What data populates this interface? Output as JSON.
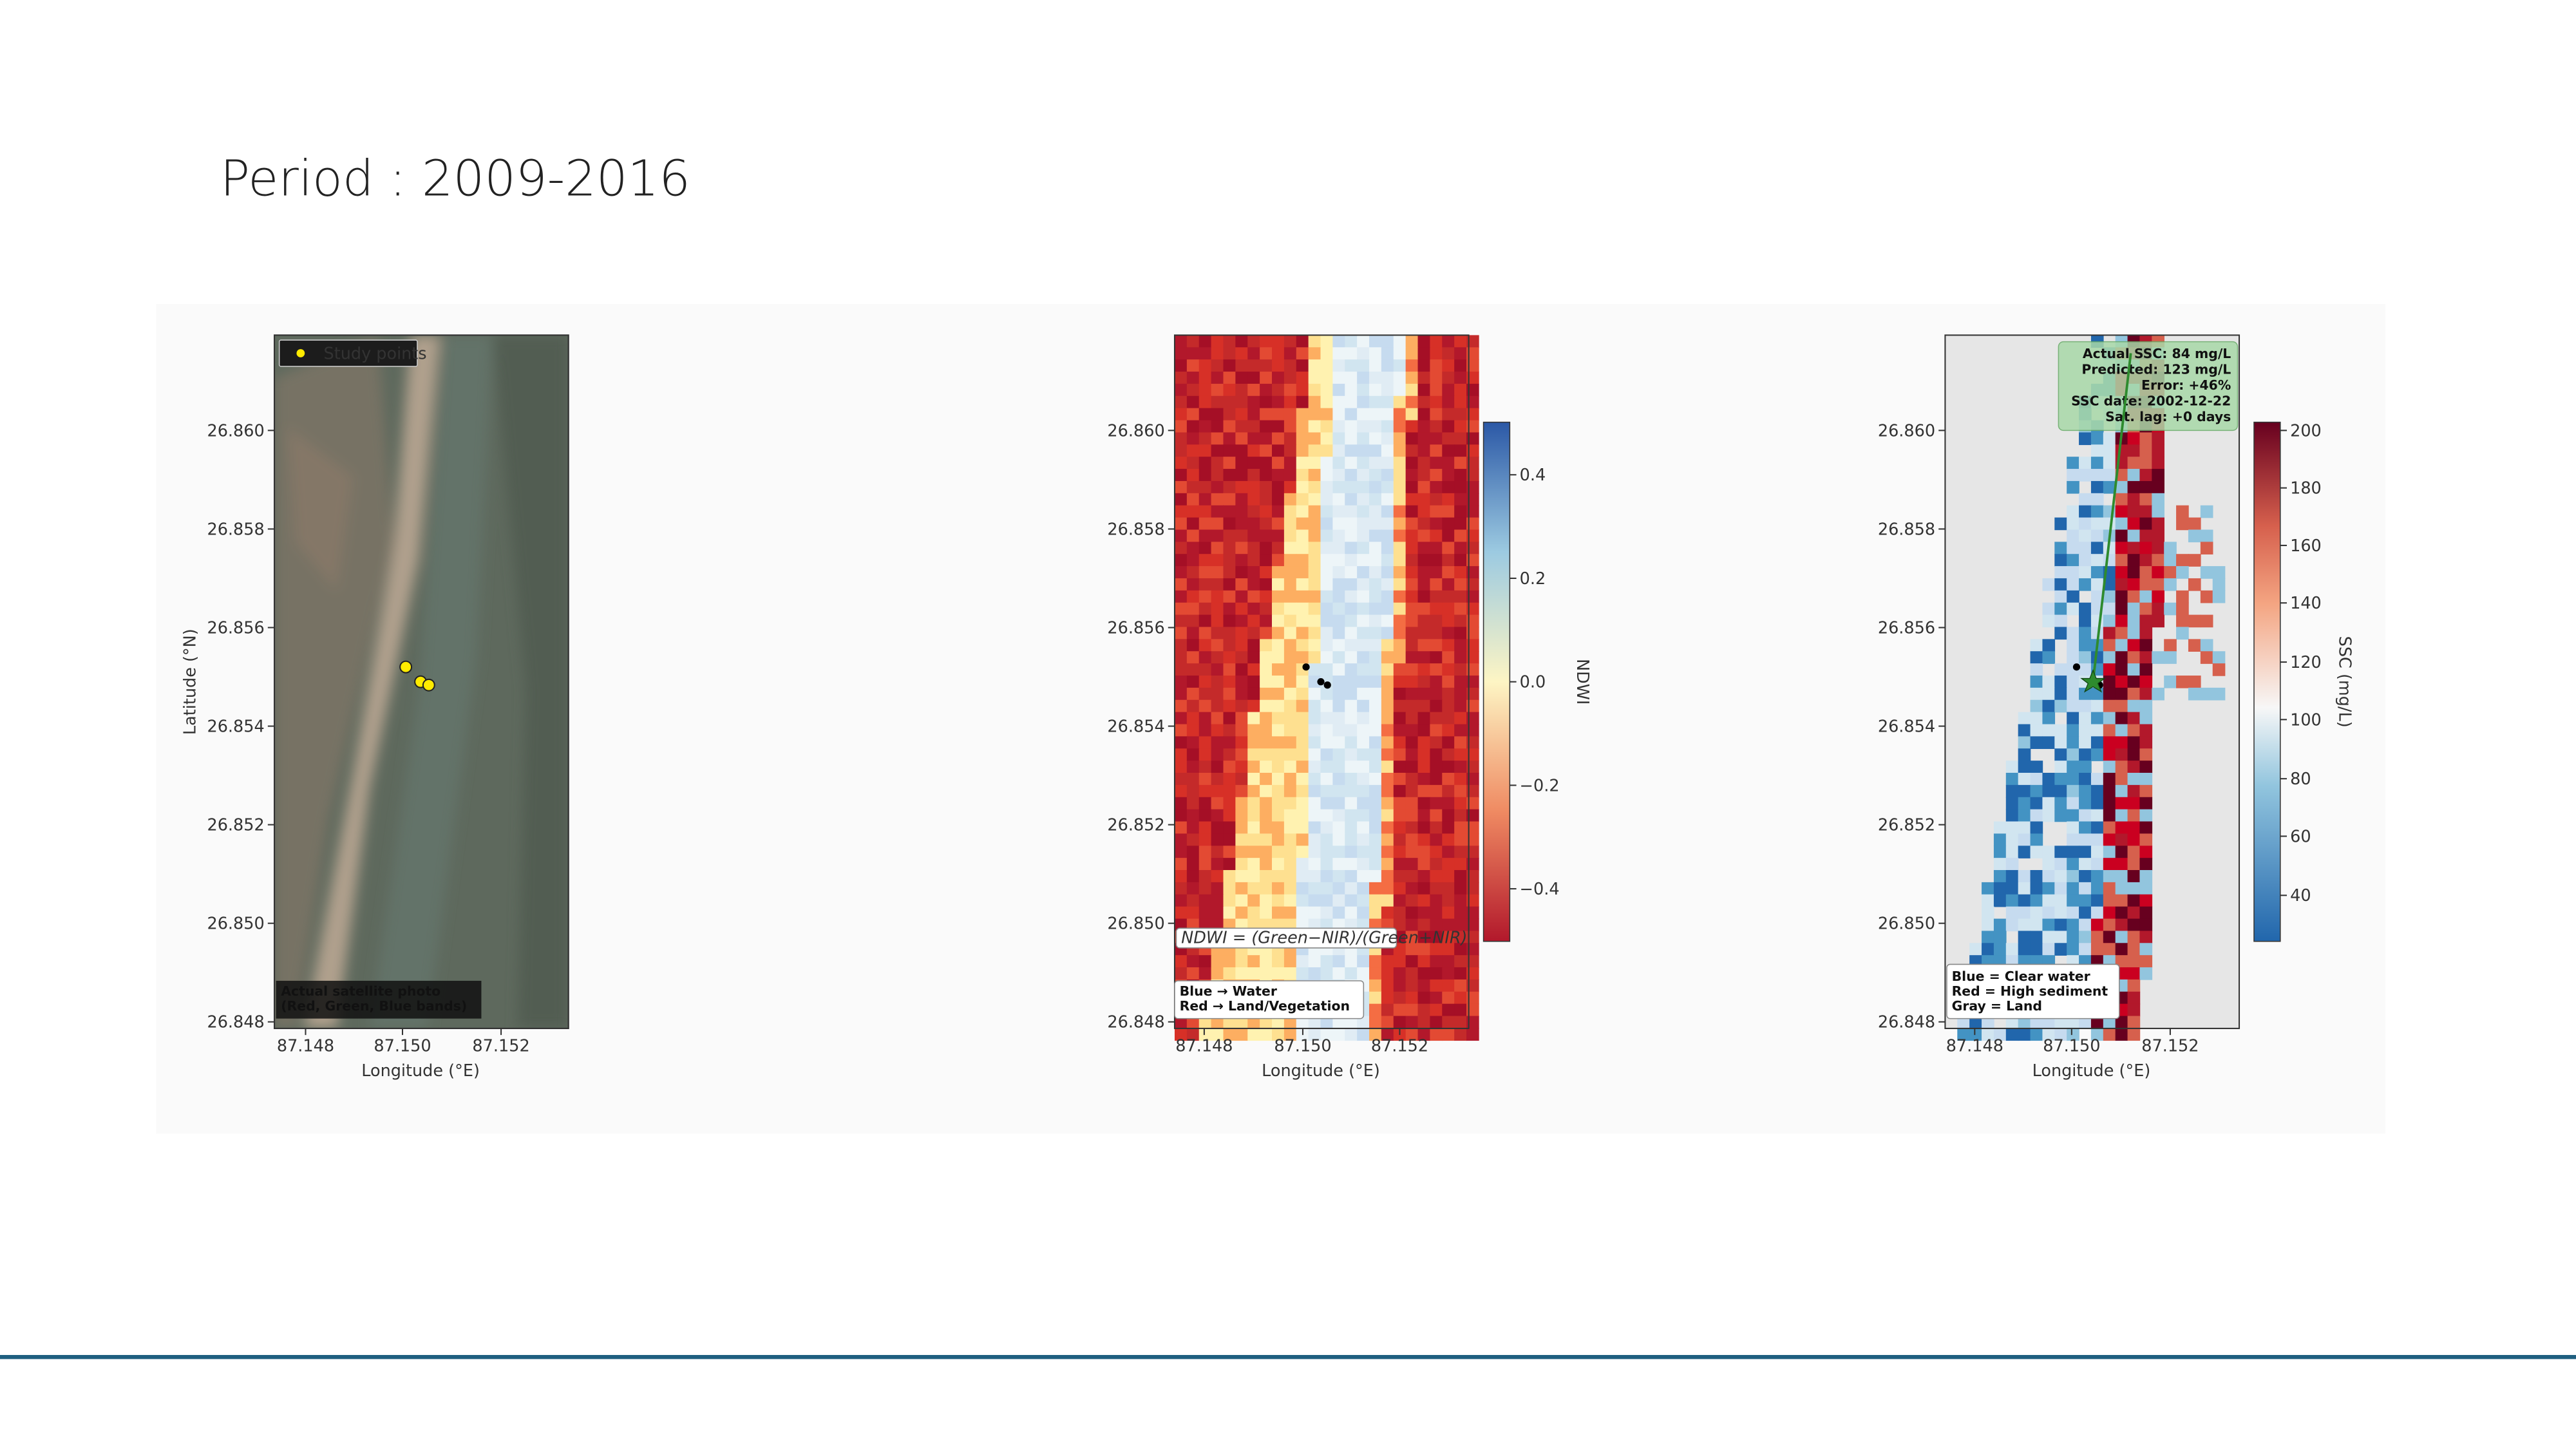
{
  "title": "Period : 2009-2016",
  "panels": [
    {
      "y_label": "Latitude (°N)",
      "y_ticks": [
        "26.860",
        "26.858",
        "26.856",
        "26.854",
        "26.852",
        "26.850",
        "26.848"
      ],
      "x_ticks": [
        "87.148",
        "87.150",
        "87.152"
      ],
      "x_label": "Longitude (°E)",
      "legend": "Study points",
      "note": [
        "Actual satellite photo",
        "(Red, Green, Blue bands)"
      ]
    },
    {
      "y_ticks": [
        "26.860",
        "26.858",
        "26.856",
        "26.854",
        "26.852",
        "26.850",
        "26.848"
      ],
      "x_ticks": [
        "87.148",
        "87.150",
        "87.152"
      ],
      "x_label": "Longitude (°E)",
      "colorbar_label": "NDWI",
      "colorbar_ticks": [
        "0.4",
        "0.2",
        "0.0",
        "−0.2",
        "−0.4"
      ],
      "formula": "NDWI = (Green−NIR)/(Green+NIR)",
      "note": [
        "Blue → Water",
        "Red → Land/Vegetation"
      ]
    },
    {
      "y_ticks": [
        "26.860",
        "26.858",
        "26.856",
        "26.854",
        "26.852",
        "26.850",
        "26.848"
      ],
      "x_ticks": [
        "87.148",
        "87.150",
        "87.152"
      ],
      "x_label": "Longitude (°E)",
      "colorbar_label": "SSC (mg/L)",
      "colorbar_ticks": [
        "200",
        "180",
        "160",
        "140",
        "120",
        "100",
        "80",
        "60",
        "40"
      ],
      "info": [
        "Actual SSC: 84 mg/L",
        "Predicted: 123 mg/L",
        "Error: +46%",
        "SSC date: 2002-12-22",
        "Sat. lag: +0 days"
      ],
      "note": [
        "Blue = Clear water",
        "Red = High sediment",
        "Gray = Land"
      ]
    }
  ]
}
